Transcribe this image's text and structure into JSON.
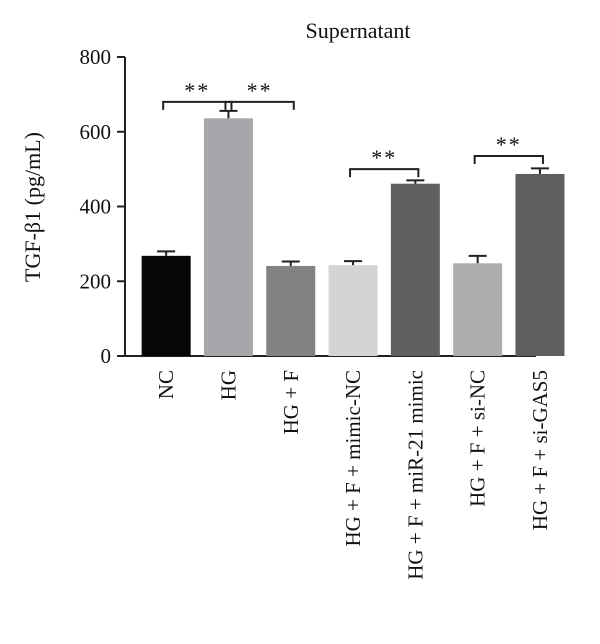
{
  "chart_data": {
    "type": "bar",
    "title": "Supernatant",
    "xlabel": "",
    "ylabel": "TGF-β1 (pg/mL)",
    "ylim": [
      0,
      800
    ],
    "yticks": [
      0,
      200,
      400,
      600,
      800
    ],
    "grid": false,
    "categories": [
      "NC",
      "HG",
      "HG + F",
      "HG + F + mimic-NC",
      "HG + F + miR-21 mimic",
      "HG + F + si-NC",
      "HG + F + si-GAS5"
    ],
    "values": [
      268,
      636,
      241,
      243,
      461,
      248,
      487
    ],
    "errors": [
      12,
      20,
      12,
      11,
      9,
      20,
      15
    ],
    "colors": [
      "#060606",
      "#a7a7ab",
      "#828284",
      "#d4d4d6",
      "#5f6062",
      "#aeaeb0",
      "#5d5e60"
    ],
    "significance": [
      {
        "from": 0,
        "to": 1,
        "label": "**",
        "y": 680
      },
      {
        "from": 1,
        "to": 2,
        "label": "**",
        "y": 680
      },
      {
        "from": 3,
        "to": 4,
        "label": "**",
        "y": 500
      },
      {
        "from": 5,
        "to": 6,
        "label": "**",
        "y": 535
      }
    ]
  }
}
